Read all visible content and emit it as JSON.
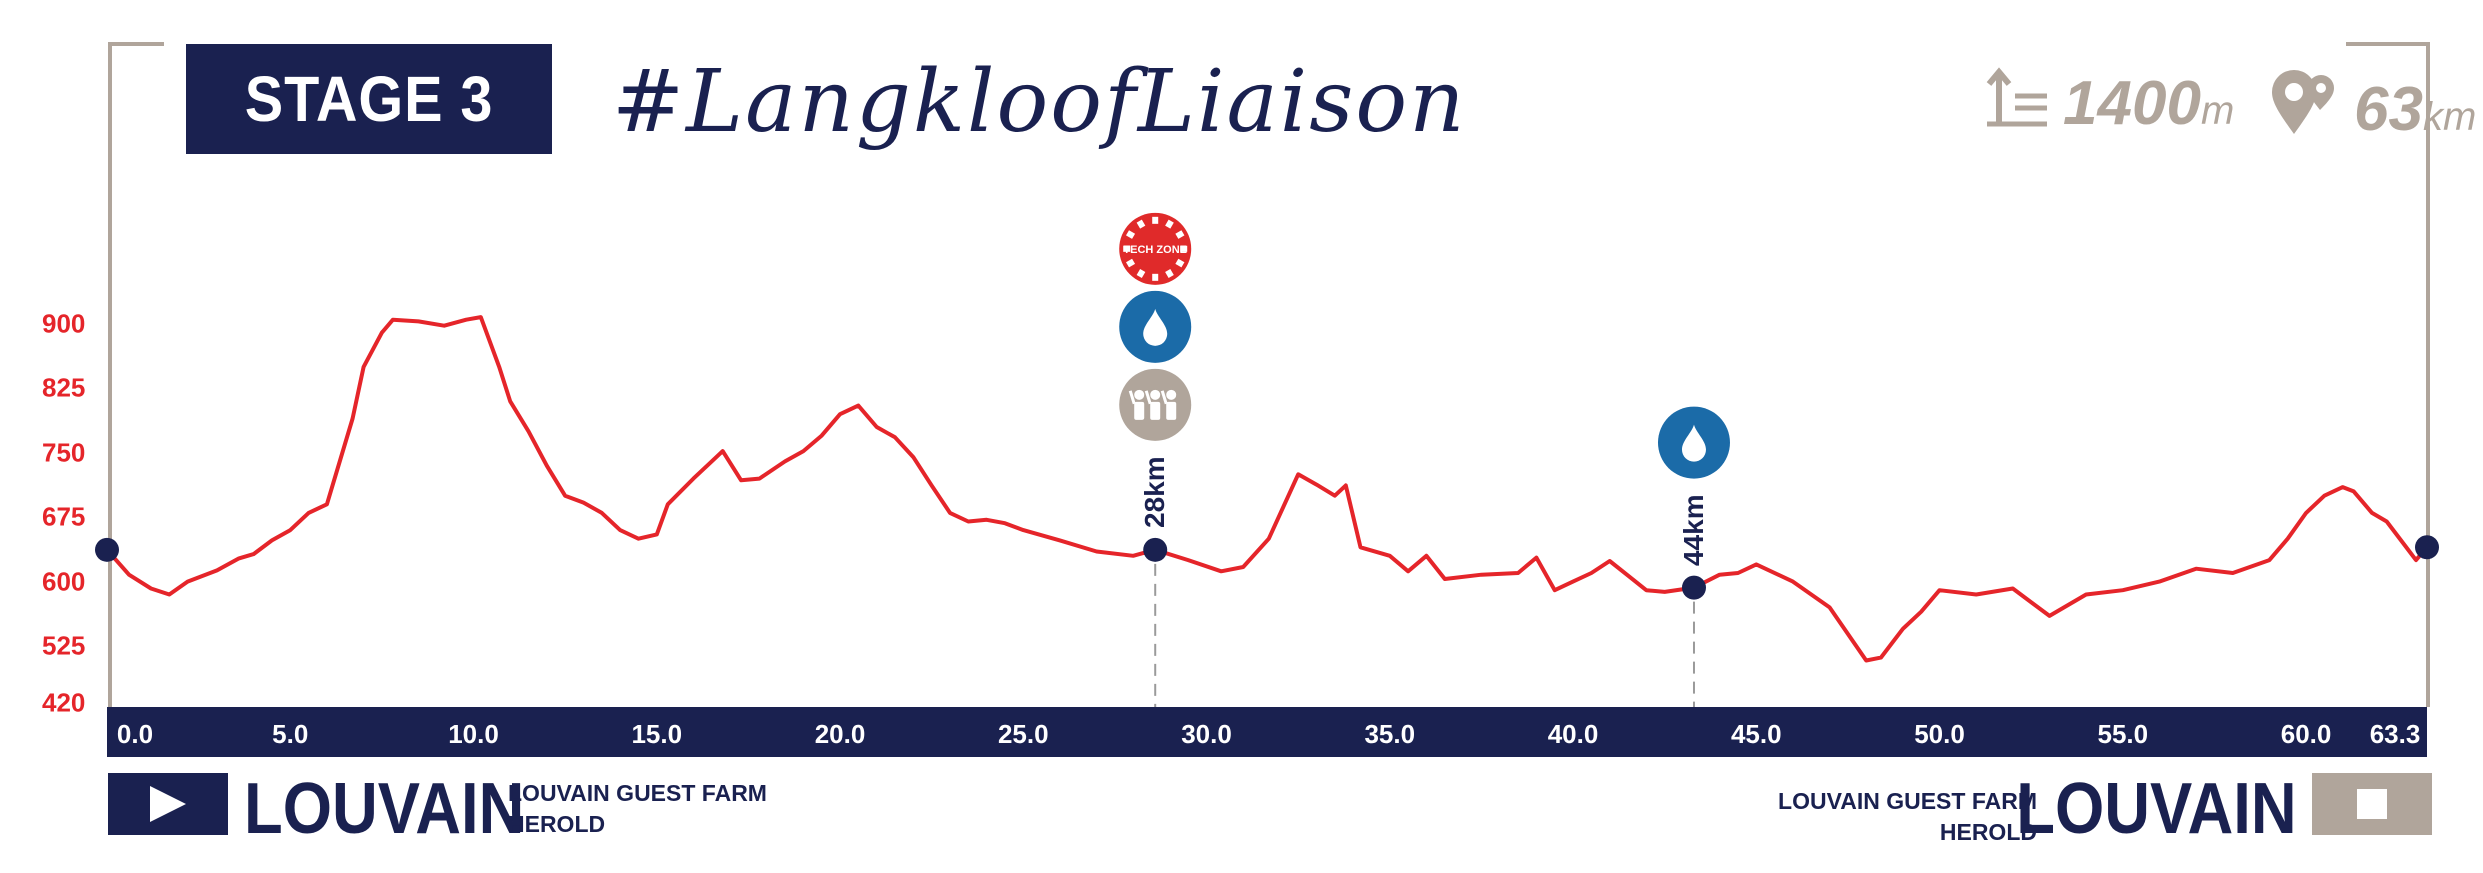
{
  "header": {
    "stage_label": "STAGE 3",
    "hashtag": "#LangkloofLiaison",
    "climb": {
      "icon": "ascent-icon",
      "value": "1400",
      "unit": "m"
    },
    "distance": {
      "icon": "map-pin-icon",
      "value": "63",
      "unit": "km"
    }
  },
  "colors": {
    "navy": "#1a2150",
    "profile_red": "#e5252a",
    "taupe": "#b0a59b",
    "water_blue": "#1b6ba8",
    "tech_red": "#e02a2a"
  },
  "start": {
    "icon": "play-icon",
    "town": "LOUVAIN",
    "venue_line1": "LOUVAIN GUEST FARM",
    "venue_line2": "HEROLD"
  },
  "finish": {
    "icon": "stop-icon",
    "town": "LOUVAIN",
    "venue_line1": "LOUVAIN GUEST FARM",
    "venue_line2": "HEROLD"
  },
  "waypoints": [
    {
      "label": "28km",
      "x": 28.6,
      "icons": [
        "tech-zone-icon",
        "water-drop-icon",
        "supporters-icon"
      ],
      "tech_label": "TECH ZONE"
    },
    {
      "label": "44km",
      "x": 43.3,
      "icons": [
        "water-drop-icon"
      ]
    }
  ],
  "chart_data": {
    "type": "area",
    "title": "",
    "xlabel": "",
    "ylabel": "",
    "xlim": [
      0,
      63.3
    ],
    "ylim": [
      420,
      960
    ],
    "x_ticks": [
      "0.0",
      "5.0",
      "10.0",
      "15.0",
      "20.0",
      "25.0",
      "30.0",
      "35.0",
      "40.0",
      "45.0",
      "50.0",
      "55.0",
      "60.0",
      "63.3"
    ],
    "x_tick_values": [
      0,
      5,
      10,
      15,
      20,
      25,
      30,
      35,
      40,
      45,
      50,
      55,
      60,
      63.3
    ],
    "y_ticks": [
      "900",
      "825",
      "750",
      "675",
      "600",
      "525",
      "420"
    ],
    "y_tick_values": [
      900,
      825,
      750,
      675,
      600,
      525,
      420
    ],
    "series": [
      {
        "x": [
          0,
          0.6,
          1.2,
          1.7,
          2.2,
          3.0,
          3.6,
          4.0,
          4.5,
          5.0,
          5.5,
          6.0,
          6.7,
          7.0,
          7.5,
          7.8,
          8.5,
          9.2,
          9.8,
          10.2,
          10.7,
          11.0,
          11.5,
          12.0,
          12.5,
          13.0,
          13.5,
          14.0,
          14.5,
          15.0,
          15.3,
          16.0,
          16.5,
          16.8,
          17.3,
          17.8,
          18.5,
          19.0,
          19.5,
          20.0,
          20.5,
          21.0,
          21.5,
          22.0,
          22.5,
          23.0,
          23.5,
          24.0,
          24.5,
          25.0,
          26.0,
          27.0,
          28.0,
          28.6,
          29.5,
          30.4,
          31.0,
          31.7,
          32.5,
          33.0,
          33.5,
          33.8,
          34.2,
          35.0,
          35.5,
          36.0,
          36.5,
          37.5,
          38.5,
          39.0,
          39.5,
          40.0,
          40.5,
          41.0,
          41.5,
          42.0,
          42.5,
          43.3,
          44.0,
          44.5,
          45.0,
          46.0,
          47.0,
          48.0,
          48.4,
          49.0,
          49.5,
          50.0,
          51.0,
          52.0,
          53.0,
          54.0,
          55.0,
          56.0,
          57.0,
          58.0,
          59.0,
          59.5,
          60.0,
          60.5,
          61.0,
          61.3,
          61.8,
          62.2,
          63.0,
          63.3
        ],
        "y": [
          637,
          608,
          592,
          585,
          600,
          613,
          627,
          632,
          648,
          660,
          680,
          690,
          790,
          850,
          890,
          905,
          903,
          898,
          905,
          908,
          850,
          810,
          775,
          735,
          700,
          692,
          680,
          660,
          650,
          655,
          690,
          720,
          740,
          752,
          718,
          720,
          740,
          752,
          770,
          795,
          805,
          780,
          768,
          745,
          712,
          680,
          670,
          672,
          668,
          660,
          648,
          635,
          630,
          637,
          625,
          612,
          617,
          650,
          725,
          713,
          700,
          712,
          640,
          630,
          612,
          630,
          603,
          608,
          610,
          628,
          590,
          600,
          610,
          624,
          607,
          590,
          588,
          593,
          608,
          610,
          620,
          600,
          570,
          500,
          505,
          545,
          565,
          590,
          585,
          592,
          560,
          585,
          590,
          600,
          615,
          610,
          625,
          650,
          680,
          700,
          710,
          705,
          680,
          670,
          625,
          640
        ]
      }
    ]
  }
}
